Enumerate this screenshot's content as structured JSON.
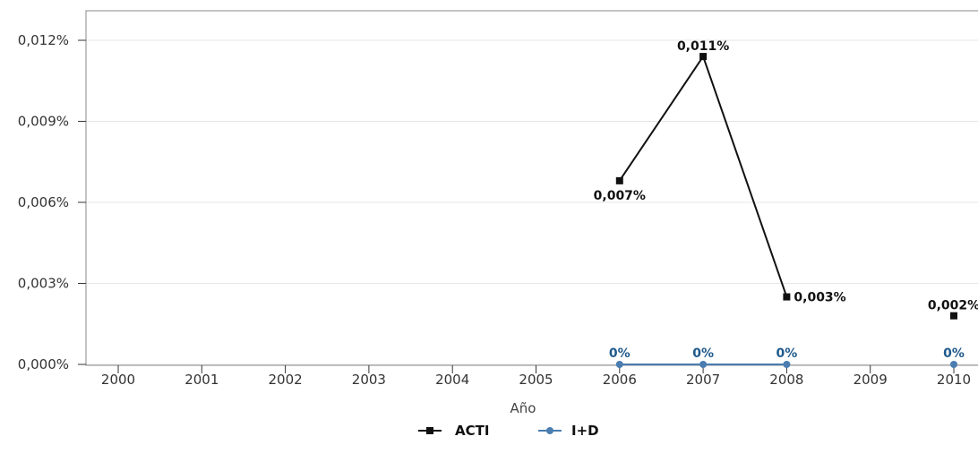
{
  "chart_data": {
    "type": "line",
    "title": "",
    "xlabel": "Año",
    "ylabel": "",
    "x": [
      "2000",
      "2001",
      "2002",
      "2003",
      "2004",
      "2005",
      "2006",
      "2007",
      "2008",
      "2009",
      "2010"
    ],
    "ylim": [
      0,
      0.0123
    ],
    "yticks": [
      0,
      0.003,
      0.006,
      0.009,
      0.012
    ],
    "ytick_labels": [
      "0,000%",
      "0,003%",
      "0,006%",
      "0,009%",
      "0,012%"
    ],
    "grid": "horizontal",
    "legend": "bottom-center",
    "series": [
      {
        "name": "ACTI",
        "marker": "square",
        "color": "#111111",
        "values": [
          null,
          null,
          null,
          null,
          null,
          null,
          0.0068,
          0.0114,
          0.0025,
          null,
          0.0018
        ],
        "labels": [
          null,
          null,
          null,
          null,
          null,
          null,
          "0,007%",
          "0,011%",
          "0,003%",
          null,
          "0,002%"
        ]
      },
      {
        "name": "I+D",
        "marker": "circle",
        "color": "#4a7db0",
        "values": [
          null,
          null,
          null,
          null,
          null,
          null,
          0,
          0,
          0,
          null,
          0
        ],
        "labels": [
          null,
          null,
          null,
          null,
          null,
          null,
          "0%",
          "0%",
          "0%",
          null,
          "0%"
        ]
      }
    ]
  }
}
